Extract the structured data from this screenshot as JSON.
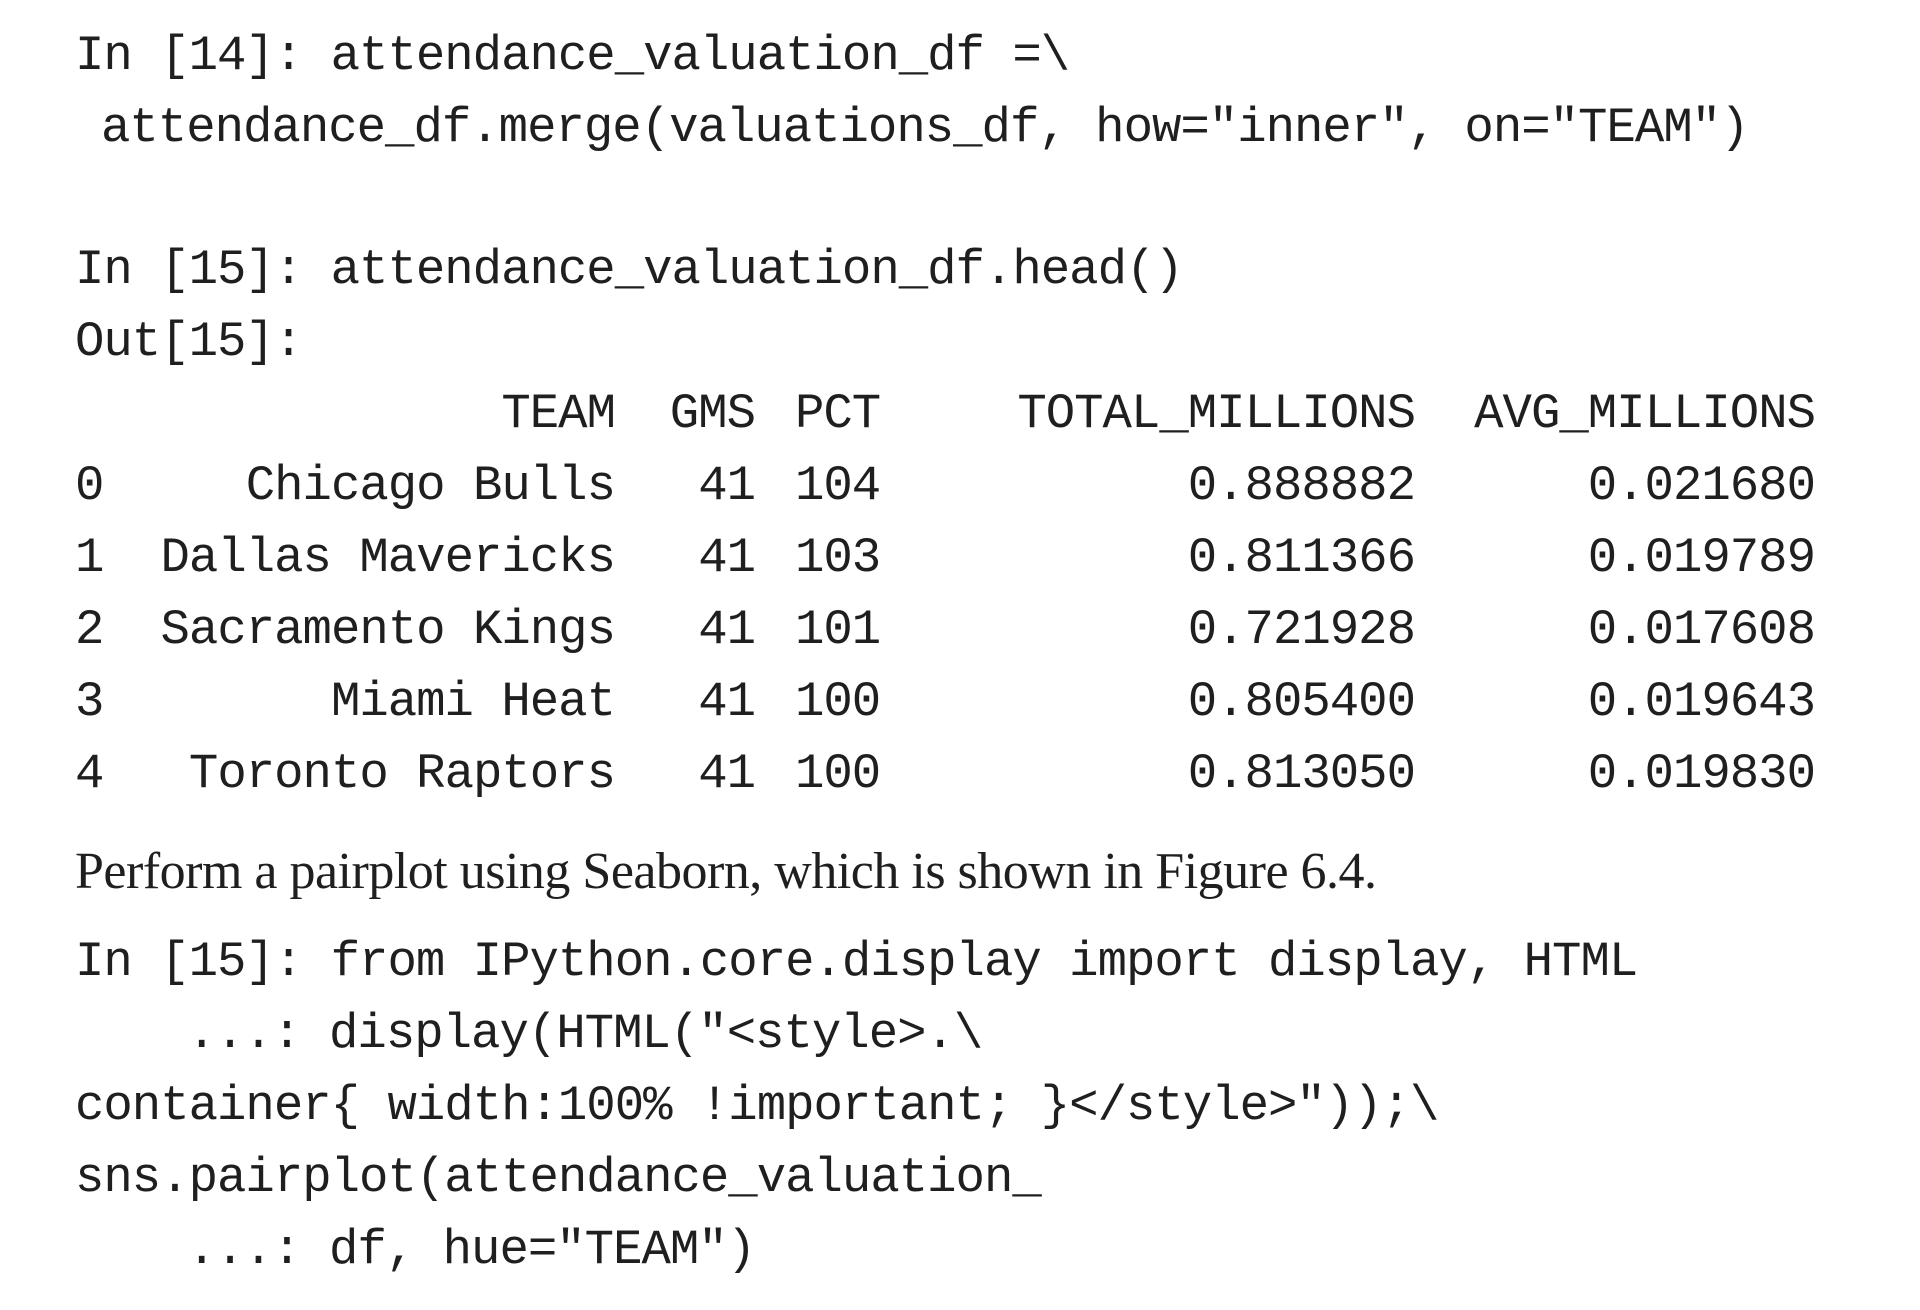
{
  "cell14": {
    "line1": "In [14]: attendance_valuation_df =\\",
    "line2": "attendance_df.merge(valuations_df, how=\"inner\", on=\"TEAM\")"
  },
  "cell15": {
    "input": "In [15]: attendance_valuation_df.head()",
    "output_label": "Out[15]:"
  },
  "dataframe": {
    "columns": [
      "",
      "TEAM",
      "GMS",
      "PCT",
      "TOTAL_MILLIONS",
      "AVG_MILLIONS"
    ],
    "rows": [
      [
        "0",
        "Chicago Bulls",
        "41",
        "104",
        "0.888882",
        "0.021680"
      ],
      [
        "1",
        "Dallas Mavericks",
        "41",
        "103",
        "0.811366",
        "0.019789"
      ],
      [
        "2",
        "Sacramento Kings",
        "41",
        "101",
        "0.721928",
        "0.017608"
      ],
      [
        "3",
        "Miami Heat",
        "41",
        "100",
        "0.805400",
        "0.019643"
      ],
      [
        "4",
        "Toronto Raptors",
        "41",
        "100",
        "0.813050",
        "0.019830"
      ]
    ]
  },
  "prose": {
    "text": "Perform a pairplot using Seaborn, which is shown in Figure 6.4."
  },
  "cell16": {
    "line1": "In [15]: from IPython.core.display import display, HTML",
    "line2": "...: display(HTML(\"<style>.\\",
    "line3": "container{ width:100% !important; }</style>\"));\\",
    "line4": "sns.pairplot(attendance_valuation_",
    "line5": "...: df, hue=\"TEAM\")"
  }
}
